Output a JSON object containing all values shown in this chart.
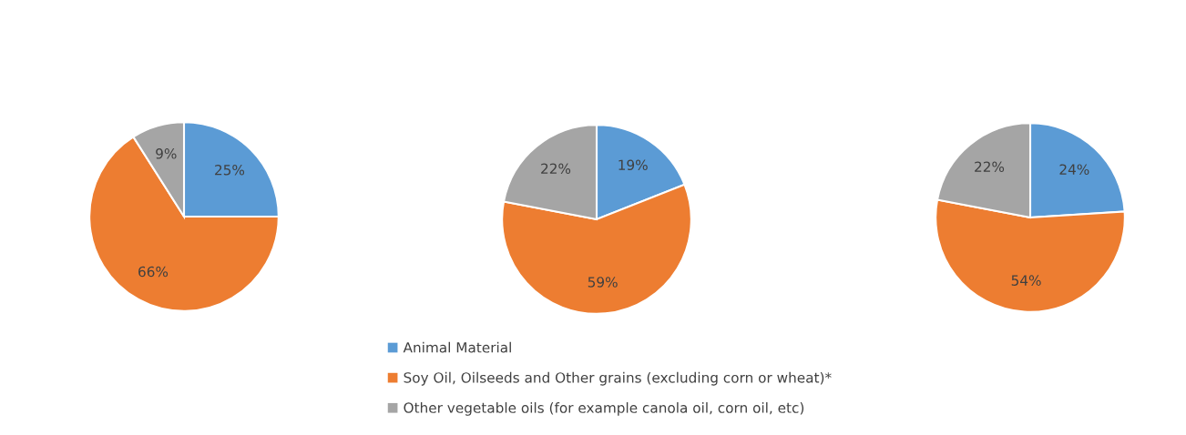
{
  "chart_data": [
    {
      "type": "pie",
      "categories": [
        "Animal Material",
        "Soy Oil, Oilseeds and Other grains (excluding corn or wheat)*",
        "Other vegetable oils (for example canola oil, corn oil, etc)"
      ],
      "values": [
        25,
        66,
        9
      ],
      "colors": [
        "#5b9bd5",
        "#ed7d31",
        "#a5a5a5"
      ],
      "value_labels": [
        "25%",
        "66%",
        "9%"
      ],
      "legend": "bottom"
    },
    {
      "type": "pie",
      "categories": [
        null,
        null,
        null
      ],
      "values": [
        19,
        59,
        22
      ],
      "colors": [
        "#5b9bd5",
        "#ed7d31",
        "#a5a5a5"
      ],
      "value_labels": [
        "19%",
        "59%",
        "22%"
      ]
    },
    {
      "type": "pie",
      "categories": [
        null,
        null,
        null
      ],
      "values": [
        24,
        54,
        22
      ],
      "colors": [
        "#5b9bd5",
        "#ed7d31",
        "#a5a5a5"
      ],
      "value_labels": [
        "24%",
        "54%",
        "22%"
      ]
    }
  ]
}
